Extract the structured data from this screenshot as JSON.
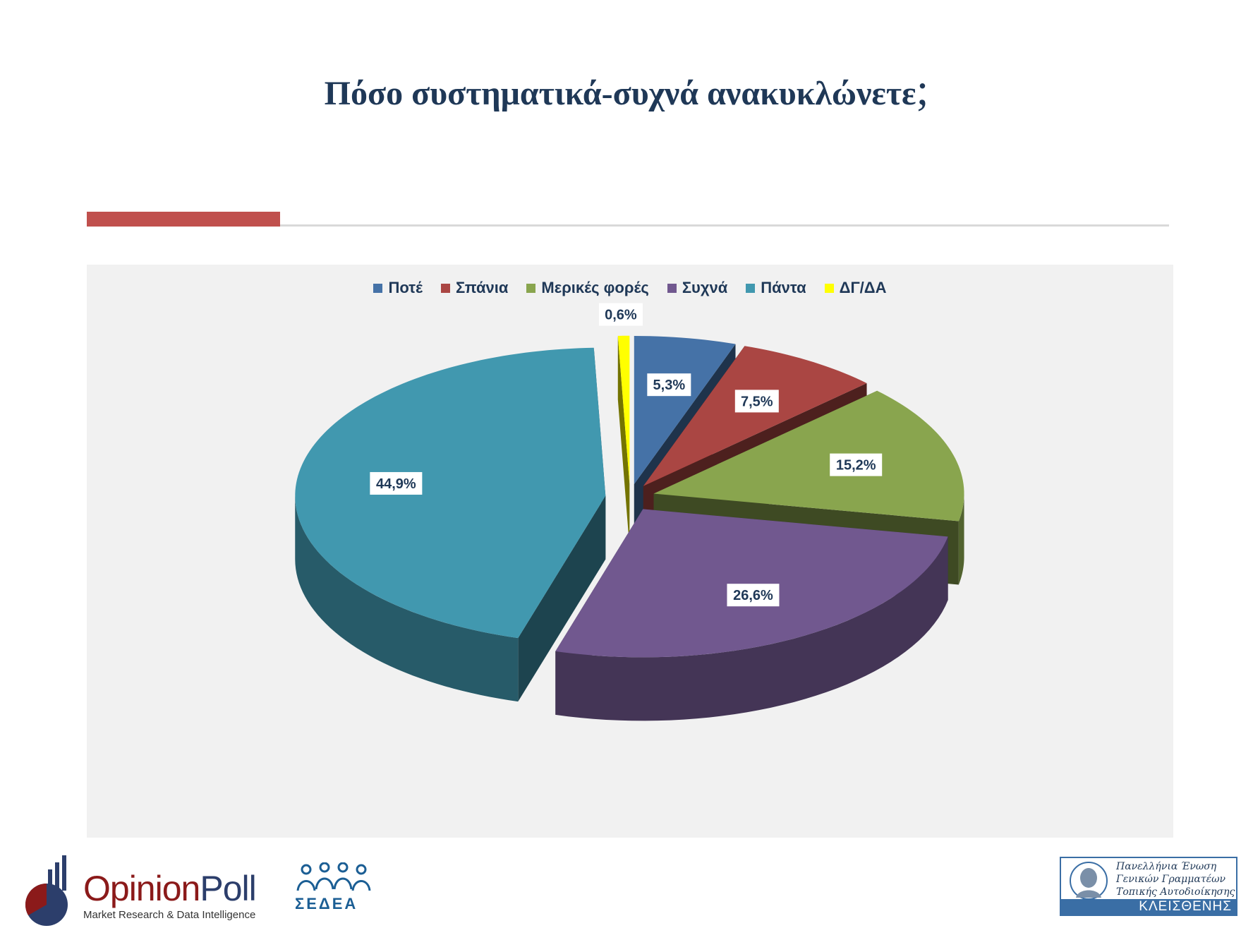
{
  "title": "Πόσο συστηματικά-συχνά ανακυκλώνετε",
  "title_punct": ";",
  "colors": {
    "title": "#1f3857",
    "accent": "#c0504d",
    "chart_bg": "#f1f1f1"
  },
  "chart_data": {
    "type": "pie",
    "variant": "3d-exploded",
    "legend_position": "top",
    "slices": [
      {
        "label": "Ποτέ",
        "value": 5.3,
        "display": "5,3%",
        "color": "#4572a7"
      },
      {
        "label": "Σπάνια",
        "value": 7.5,
        "display": "7,5%",
        "color": "#aa4643"
      },
      {
        "label": "Μερικές φορές",
        "value": 15.2,
        "display": "15,2%",
        "color": "#89a54e"
      },
      {
        "label": "Συχνά",
        "value": 26.6,
        "display": "26,6%",
        "color": "#71588f"
      },
      {
        "label": "Πάντα",
        "value": 44.9,
        "display": "44,9%",
        "color": "#4198af"
      },
      {
        "label": "ΔΓ/ΔΑ",
        "value": 0.6,
        "display": "0,6%",
        "color": "#ffff00"
      }
    ]
  },
  "footer": {
    "opinionpoll_name_a": "Opinion",
    "opinionpoll_name_b": "Poll",
    "opinionpoll_tagline": "Market Research & Data Intelligence",
    "sedea_text": "ΣΕΔΕΑ",
    "kleisthenis_lines": [
      "Πανελλήνια Ένωση",
      "Γενικών Γραμματέων",
      "Τοπικής Αυτοδιοίκησης"
    ],
    "kleisthenis_name": "ΚΛΕΙΣΘΕΝΗΣ"
  }
}
